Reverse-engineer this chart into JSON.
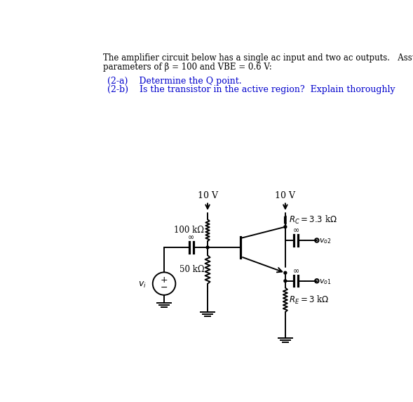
{
  "bg_color": "#ffffff",
  "lc": "black",
  "lw": 1.4,
  "header_line1": "The amplifier circuit below has a single ac input and two ac outputs.   Assuming transistor",
  "header_line2": "parameters of β = 100 and VBE = 0.6 V:",
  "q2a_label": "(2-a)    Determine the Q point.",
  "q2b_label": "(2-b)    Is the transistor in the active region?  Explain thoroughly",
  "r1_label": "100 kΩ",
  "r2_label": "50 kΩ",
  "rc_label": "R_C = 3.3 kΩ",
  "re_label": "R_E = 3 kΩ",
  "vcc1": "10 V",
  "vcc2": "10 V",
  "vi_label": "v_i",
  "vo1_label": "v_{o1}",
  "vo2_label": "v_{o2}",
  "blue": "#0000cc",
  "text_color": "#000000",
  "header_fontsize": 8.5,
  "q_fontsize": 9.0,
  "label_fontsize": 8.5,
  "xL": 287,
  "xR": 430,
  "xVS": 207,
  "xCap": 257,
  "xTbar": 348,
  "yVCC": 305,
  "yR1bot": 368,
  "yR2bot": 450,
  "yGndL": 482,
  "yCollector": 330,
  "yEmitter": 415,
  "yREbot": 500,
  "yGndR": 530,
  "yVS": 435,
  "yCapOut2": 355,
  "yCapOut1": 430
}
